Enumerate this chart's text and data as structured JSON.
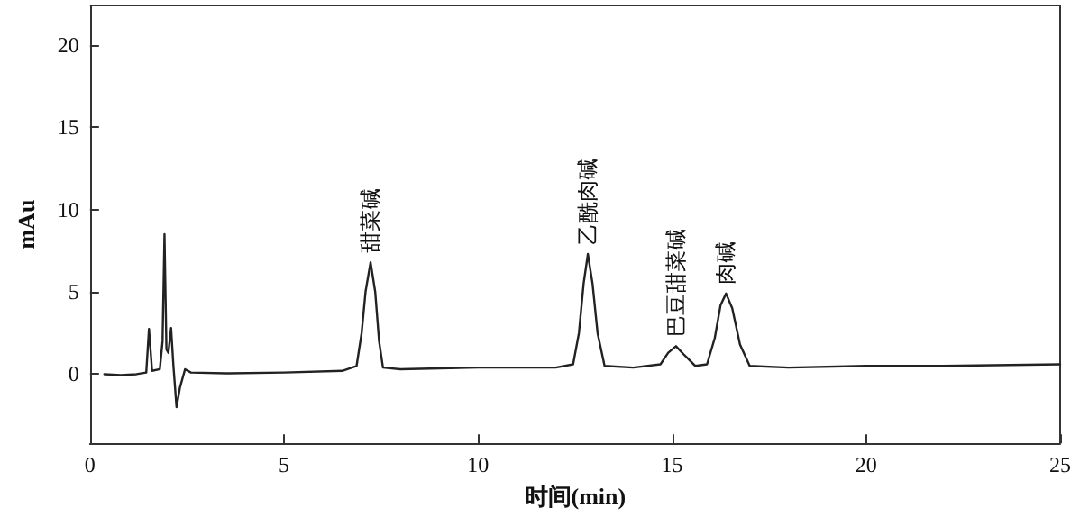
{
  "chart_data": {
    "type": "line",
    "xlabel": "时间(min)",
    "ylabel": "mAu",
    "xlim": [
      0,
      25
    ],
    "xticks": [
      0,
      5,
      10,
      15,
      20,
      25
    ],
    "ylim": [
      -4.2,
      22.4
    ],
    "yticks": [
      0,
      5,
      10,
      15,
      20
    ],
    "grid": false,
    "marker": "none",
    "line_style": "solid",
    "x": [
      0.37,
      0.8,
      1.2,
      1.45,
      1.52,
      1.6,
      1.8,
      1.87,
      1.92,
      1.97,
      2.02,
      2.09,
      2.15,
      2.23,
      2.32,
      2.45,
      2.6,
      3.5,
      5,
      6.5,
      6.87,
      7.0,
      7.1,
      7.23,
      7.35,
      7.45,
      7.55,
      8,
      10,
      12,
      12.45,
      12.6,
      12.72,
      12.83,
      12.95,
      13.08,
      13.26,
      14,
      14.7,
      14.9,
      15.1,
      15.3,
      15.6,
      15.9,
      16.1,
      16.25,
      16.39,
      16.55,
      16.75,
      17.0,
      18,
      20,
      22,
      25
    ],
    "series": [
      {
        "color": "#222222",
        "values": [
          0,
          -0.05,
          0,
          0.1,
          2.75,
          0.2,
          0.3,
          2,
          8.5,
          1.5,
          1.3,
          2.8,
          0.5,
          -2.0,
          -0.8,
          0.3,
          0.1,
          0.05,
          0.1,
          0.2,
          0.5,
          2.5,
          5.0,
          6.8,
          5,
          2,
          0.4,
          0.3,
          0.4,
          0.4,
          0.6,
          2.5,
          5.5,
          7.3,
          5.5,
          2.5,
          0.5,
          0.4,
          0.6,
          1.3,
          1.7,
          1.2,
          0.5,
          0.6,
          2.2,
          4.2,
          4.9,
          4.0,
          1.8,
          0.5,
          0.4,
          0.5,
          0.5,
          0.6
        ]
      }
    ],
    "annotations": [
      {
        "text": "甜菜碱",
        "x": 7.23,
        "y": 6.8
      },
      {
        "text": "乙酰肉碱",
        "x": 12.83,
        "y": 7.3
      },
      {
        "text": "巴豆甜菜碱",
        "x": 15.1,
        "y": 1.7
      },
      {
        "text": "肉碱",
        "x": 16.39,
        "y": 4.9
      }
    ]
  }
}
